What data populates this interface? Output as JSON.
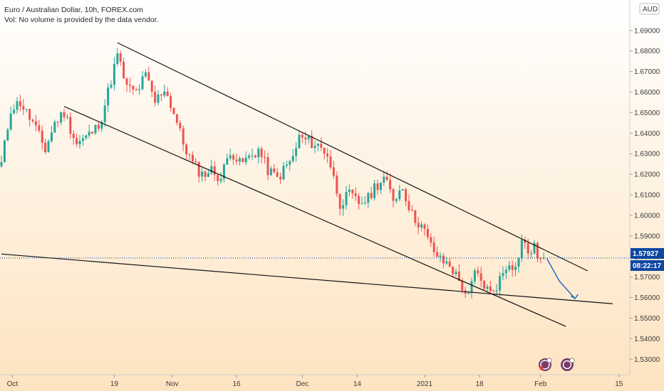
{
  "header": {
    "title": "Euro / Australian Dollar, 10h, FOREX.com",
    "volume_note": "Vol: No volume is provided by the data vendor."
  },
  "currency_badge": "AUD",
  "price_tag": {
    "price": "1.57927",
    "countdown": "08:22:17",
    "color": "#0d47a1"
  },
  "colors": {
    "up": "#26a69a",
    "down": "#ef5350",
    "line": "#111111",
    "projection": "#1565c0",
    "bg_top": "#ffffff",
    "bg_bottom": "#fde3c0"
  },
  "chart_data": {
    "type": "candlestick",
    "symbol": "EURAUD",
    "timeframe": "10h",
    "ylim": [
      1.5225,
      1.7048
    ],
    "y_ticks": [
      1.53,
      1.54,
      1.55,
      1.56,
      1.57,
      1.58,
      1.59,
      1.6,
      1.61,
      1.62,
      1.63,
      1.64,
      1.65,
      1.66,
      1.67,
      1.68,
      1.69
    ],
    "y_tick_labels": [
      "1.53000",
      "1.54000",
      "1.55000",
      "1.56000",
      "1.57000",
      "1.58000",
      "1.59000",
      "1.60000",
      "1.61000",
      "1.62000",
      "1.63000",
      "1.64000",
      "1.65000",
      "1.66000",
      "1.67000",
      "1.68000",
      "1.69000"
    ],
    "x_ticks": [
      {
        "label": "Oct",
        "bar": 3.5
      },
      {
        "label": "19",
        "bar": 36
      },
      {
        "label": "Nov",
        "bar": 54.5
      },
      {
        "label": "16",
        "bar": 75
      },
      {
        "label": "Dec",
        "bar": 96
      },
      {
        "label": "14",
        "bar": 113.5
      },
      {
        "label": "2021",
        "bar": 135
      },
      {
        "label": "18",
        "bar": 152.5
      },
      {
        "label": "Feb",
        "bar": 172
      },
      {
        "label": "15",
        "bar": 197
      }
    ],
    "last_price": 1.57927,
    "anchors": [
      [
        0,
        1.625
      ],
      [
        3,
        1.652
      ],
      [
        6,
        1.655
      ],
      [
        10,
        1.645
      ],
      [
        14,
        1.632
      ],
      [
        17,
        1.645
      ],
      [
        20,
        1.65
      ],
      [
        24,
        1.635
      ],
      [
        27,
        1.638
      ],
      [
        30,
        1.642
      ],
      [
        32,
        1.648
      ],
      [
        34,
        1.66
      ],
      [
        37,
        1.678
      ],
      [
        40,
        1.662
      ],
      [
        43,
        1.66
      ],
      [
        46,
        1.668
      ],
      [
        49,
        1.655
      ],
      [
        52,
        1.662
      ],
      [
        55,
        1.65
      ],
      [
        58,
        1.635
      ],
      [
        61,
        1.625
      ],
      [
        64,
        1.62
      ],
      [
        67,
        1.622
      ],
      [
        70,
        1.618
      ],
      [
        73,
        1.632
      ],
      [
        76,
        1.625
      ],
      [
        79,
        1.628
      ],
      [
        82,
        1.632
      ],
      [
        85,
        1.622
      ],
      [
        88,
        1.618
      ],
      [
        91,
        1.624
      ],
      [
        93,
        1.628
      ],
      [
        95,
        1.638
      ],
      [
        98,
        1.636
      ],
      [
        101,
        1.634
      ],
      [
        104,
        1.63
      ],
      [
        106,
        1.618
      ],
      [
        108,
        1.606
      ],
      [
        111,
        1.61
      ],
      [
        114,
        1.606
      ],
      [
        117,
        1.608
      ],
      [
        119,
        1.614
      ],
      [
        122,
        1.618
      ],
      [
        125,
        1.608
      ],
      [
        128,
        1.614
      ],
      [
        131,
        1.6
      ],
      [
        134,
        1.595
      ],
      [
        137,
        1.585
      ],
      [
        140,
        1.578
      ],
      [
        143,
        1.576
      ],
      [
        146,
        1.568
      ],
      [
        149,
        1.56
      ],
      [
        151,
        1.572
      ],
      [
        154,
        1.566
      ],
      [
        156,
        1.562
      ],
      [
        158,
        1.566
      ],
      [
        160,
        1.572
      ],
      [
        162,
        1.578
      ],
      [
        164,
        1.574
      ],
      [
        166,
        1.588
      ],
      [
        168,
        1.582
      ],
      [
        170,
        1.584
      ],
      [
        172,
        1.578
      ],
      [
        173,
        1.58
      ]
    ],
    "lines": [
      {
        "name": "upper-channel",
        "points": [
          [
            37,
            1.684
          ],
          [
            187,
            1.573
          ]
        ]
      },
      {
        "name": "lower-channel",
        "points": [
          [
            20,
            1.653
          ],
          [
            180,
            1.546
          ]
        ]
      },
      {
        "name": "support-line",
        "points": [
          [
            0,
            1.5812
          ],
          [
            195,
            1.557
          ]
        ]
      }
    ],
    "projection": [
      [
        174,
        1.579
      ],
      [
        178,
        1.568
      ],
      [
        183,
        1.5595
      ]
    ]
  }
}
